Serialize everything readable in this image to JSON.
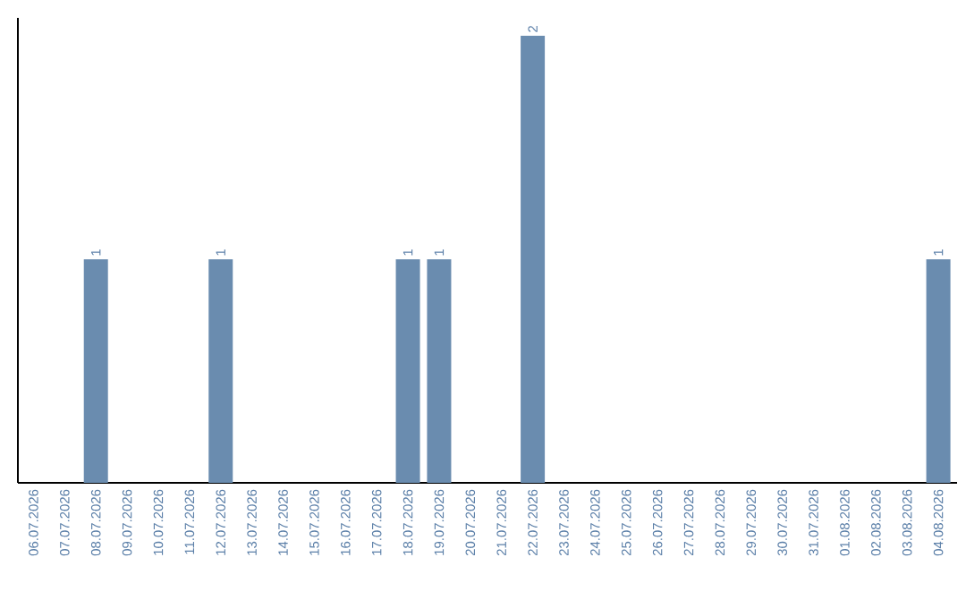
{
  "chart_data": {
    "type": "bar",
    "categories": [
      "06.07.2026",
      "07.07.2026",
      "08.07.2026",
      "09.07.2026",
      "10.07.2026",
      "11.07.2026",
      "12.07.2026",
      "13.07.2026",
      "14.07.2026",
      "15.07.2026",
      "16.07.2026",
      "17.07.2026",
      "18.07.2026",
      "19.07.2026",
      "20.07.2026",
      "21.07.2026",
      "22.07.2026",
      "23.07.2026",
      "24.07.2026",
      "25.07.2026",
      "26.07.2026",
      "27.07.2026",
      "28.07.2026",
      "29.07.2026",
      "30.07.2026",
      "31.07.2026",
      "01.08.2026",
      "02.08.2026",
      "03.08.2026",
      "04.08.2026"
    ],
    "values": [
      0,
      0,
      1,
      0,
      0,
      0,
      1,
      0,
      0,
      0,
      0,
      0,
      1,
      1,
      0,
      0,
      2,
      0,
      0,
      0,
      0,
      0,
      0,
      0,
      0,
      0,
      0,
      0,
      0,
      1
    ],
    "value_labels": [
      null,
      null,
      "1",
      null,
      null,
      null,
      "1",
      null,
      null,
      null,
      null,
      null,
      "1",
      "1",
      null,
      null,
      "2",
      null,
      null,
      null,
      null,
      null,
      null,
      null,
      null,
      null,
      null,
      null,
      null,
      "1"
    ],
    "color": "#6a8caf"
  }
}
